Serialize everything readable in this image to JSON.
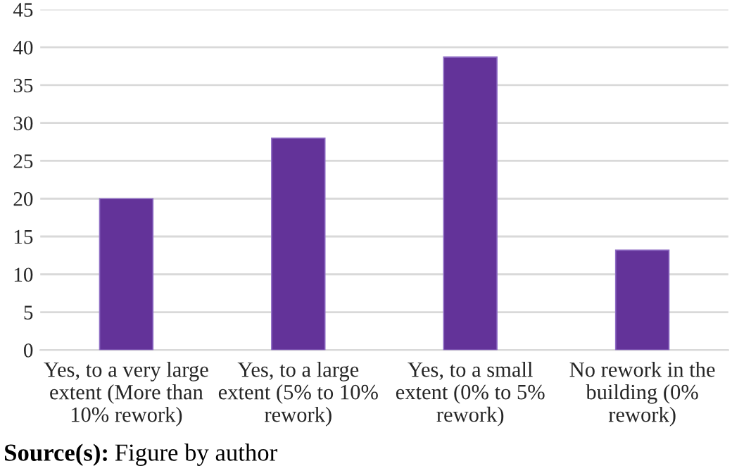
{
  "chart_data": {
    "type": "bar",
    "categories": [
      "Yes, to a very large\nextent (More than\n10% rework)",
      "Yes, to a large\nextent (5% to 10%\nrework)",
      "Yes, to a small\nextent (0% to 5%\nrework)",
      "No rework in the\nbuilding (0%\nrework)"
    ],
    "values": [
      20,
      28,
      38.7,
      13.2
    ],
    "color": "#633399",
    "ylim": [
      0,
      45
    ],
    "yticks": [
      0,
      5,
      10,
      15,
      20,
      25,
      30,
      35,
      40,
      45
    ],
    "grid": "y",
    "annotations": [
      "Source(s): Figure by author"
    ]
  }
}
